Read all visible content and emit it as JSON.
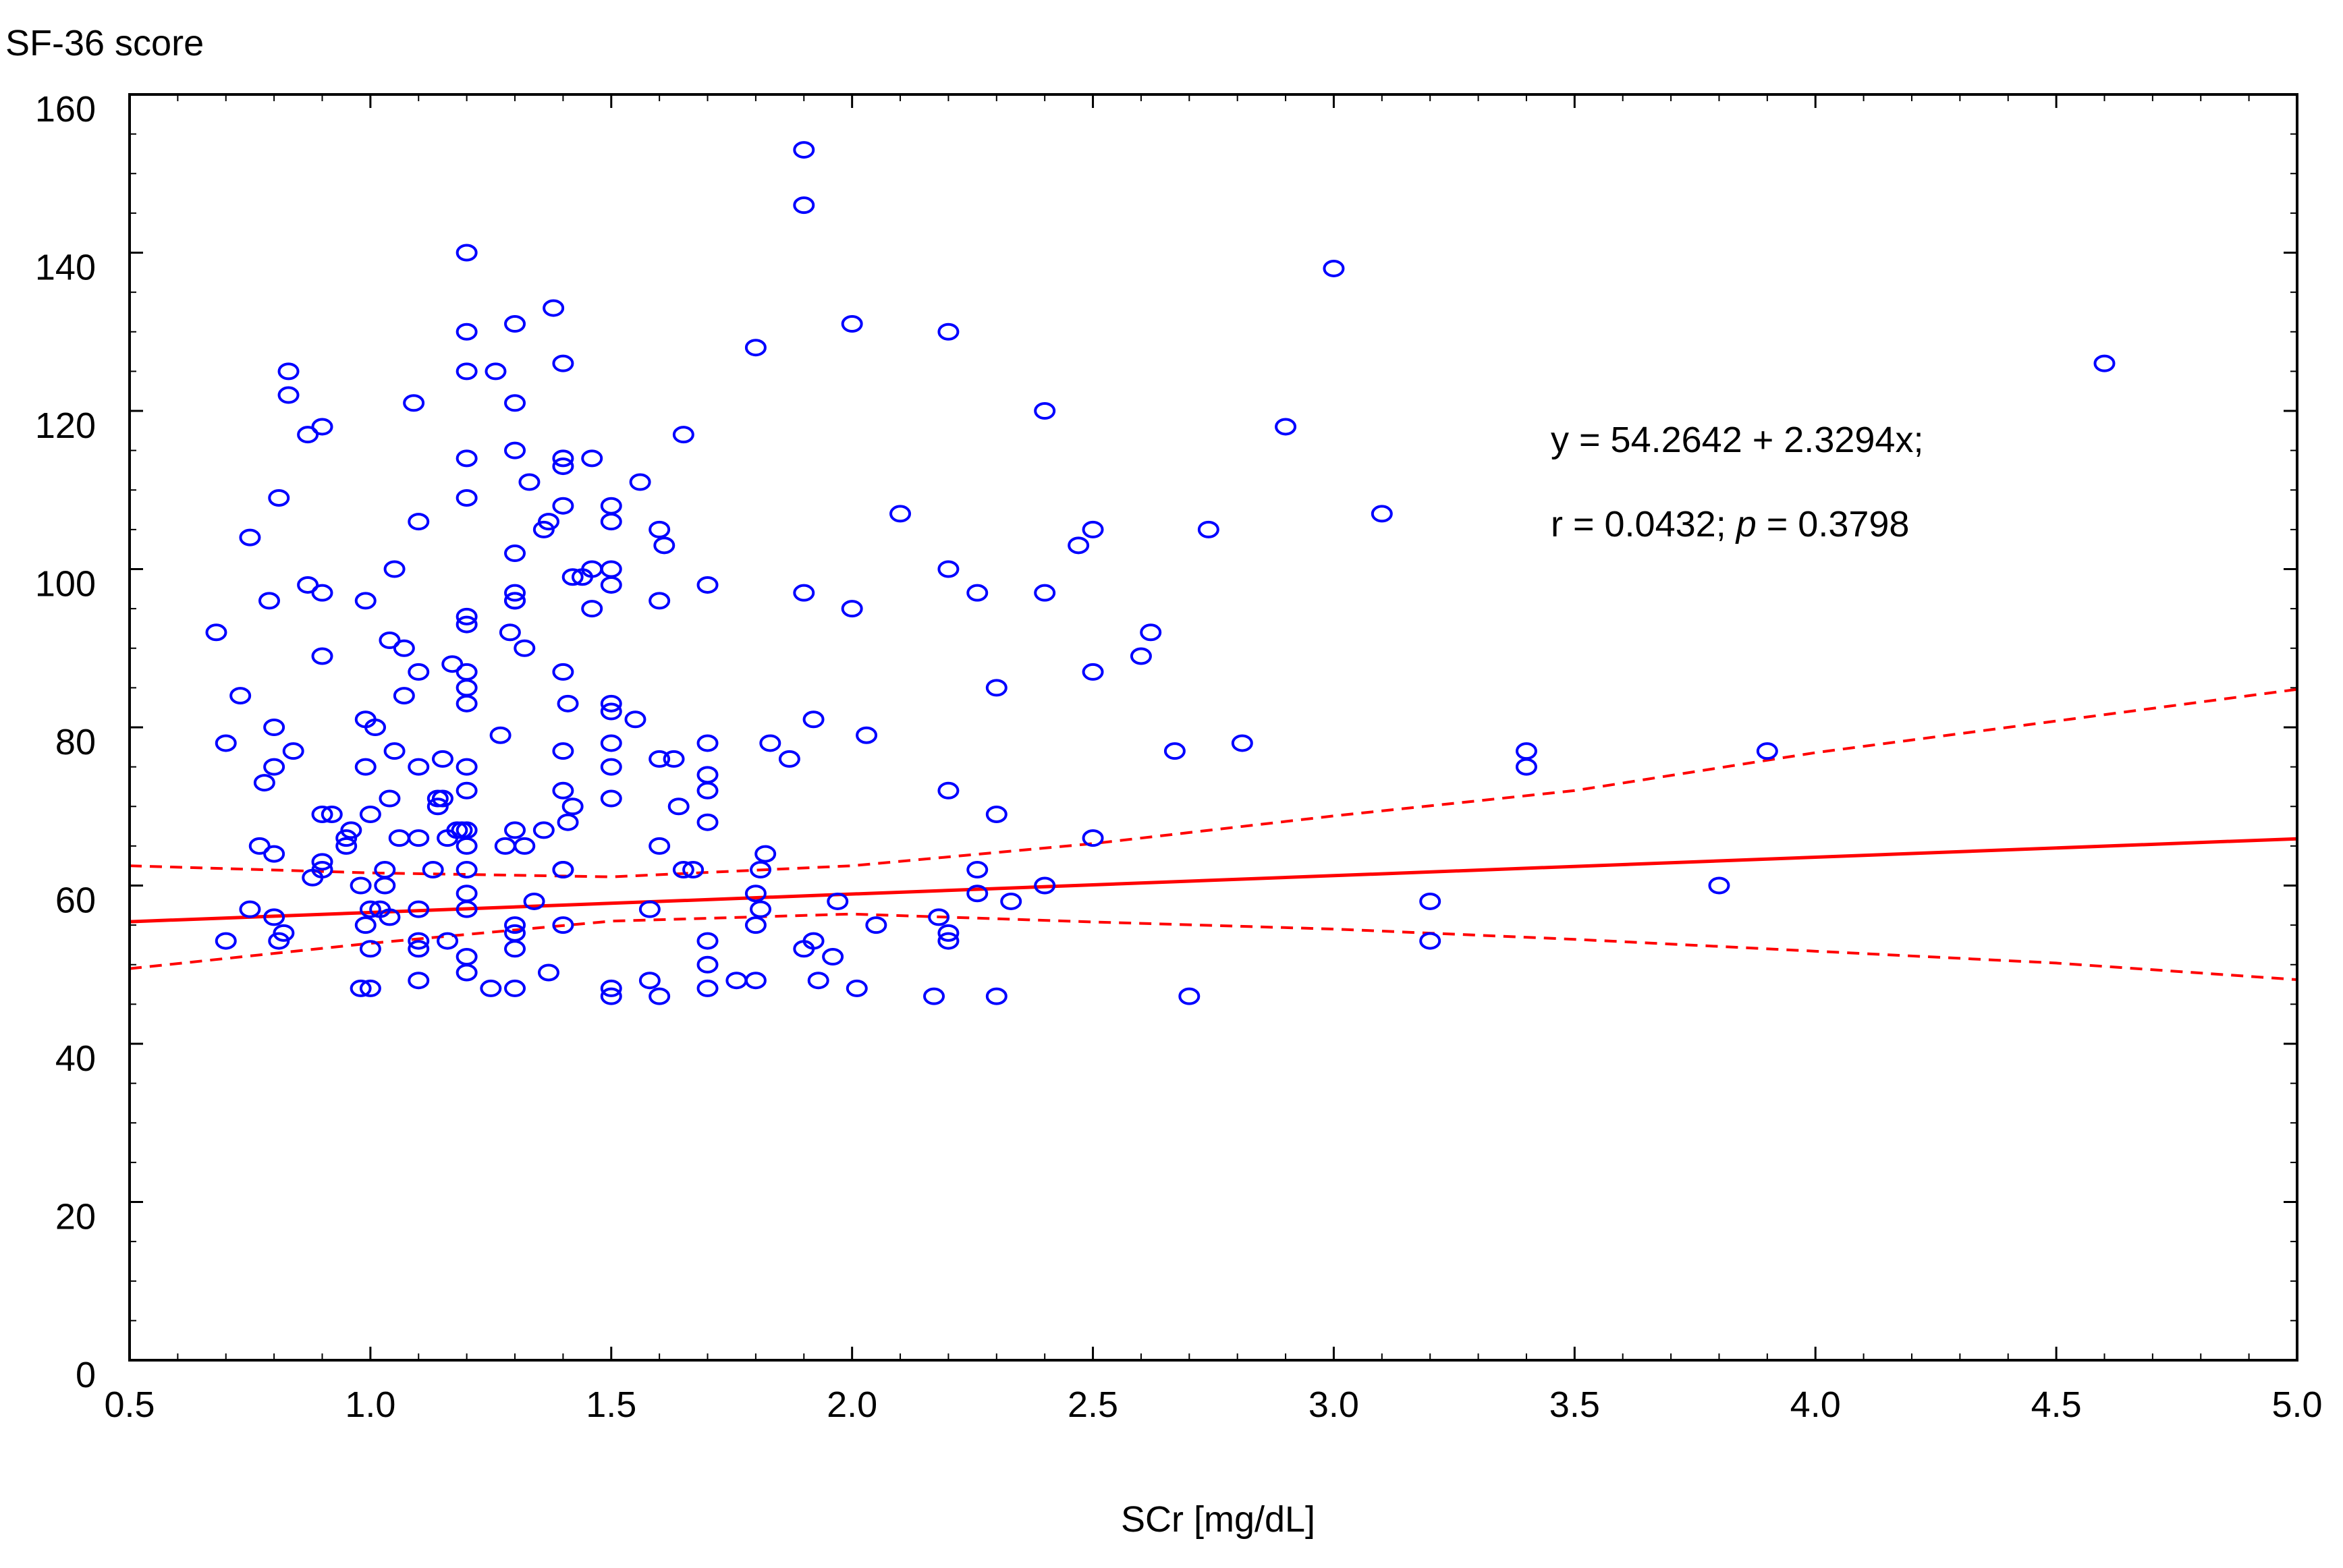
{
  "chart_data": {
    "type": "scatter",
    "title": "",
    "ylabel": "SF-36 score",
    "xlabel": "SCr [mg/dL]",
    "xlim": [
      0.5,
      5.0
    ],
    "ylim": [
      0,
      160
    ],
    "xticks": [
      0.5,
      1.0,
      1.5,
      2.0,
      2.5,
      3.0,
      3.5,
      4.0,
      4.5,
      5.0
    ],
    "xtick_labels": [
      "0.5",
      "1.0",
      "1.5",
      "2.0",
      "2.5",
      "3.0",
      "3.5",
      "4.0",
      "4.5",
      "5.0"
    ],
    "yticks": [
      0,
      20,
      40,
      60,
      80,
      100,
      120,
      140,
      160
    ],
    "ytick_labels": [
      "0",
      "20",
      "40",
      "60",
      "80",
      "100",
      "120",
      "140",
      "160"
    ],
    "annotation_line1": "y = 54.2642 + 2.3294x;",
    "annotation_r": "r = 0.0432; ",
    "annotation_p_symbol": "p",
    "annotation_p_value": " = 0.3798",
    "regression": {
      "intercept": 54.2642,
      "slope": 2.3294
    },
    "confidence_band": {
      "x": [
        0.5,
        1.0,
        1.5,
        2.0,
        2.5,
        3.0,
        3.5,
        4.0,
        4.5,
        5.0
      ],
      "upper": [
        62.5,
        61.6,
        61.1,
        62.5,
        65.3,
        68.8,
        72.0,
        76.8,
        80.8,
        84.8
      ],
      "lower": [
        49.5,
        52.7,
        55.5,
        56.4,
        55.4,
        54.5,
        53.2,
        51.7,
        50.2,
        48.1
      ]
    },
    "series": [
      {
        "name": "patients",
        "color": "#0000ff",
        "points": [
          [
            0.68,
            92
          ],
          [
            0.7,
            78
          ],
          [
            0.7,
            53
          ],
          [
            0.73,
            84
          ],
          [
            0.75,
            104
          ],
          [
            0.75,
            57
          ],
          [
            0.77,
            65
          ],
          [
            0.78,
            73
          ],
          [
            0.79,
            96
          ],
          [
            0.8,
            64
          ],
          [
            0.8,
            80
          ],
          [
            0.8,
            75
          ],
          [
            0.8,
            56
          ],
          [
            0.81,
            109
          ],
          [
            0.81,
            53
          ],
          [
            0.82,
            54
          ],
          [
            0.83,
            122
          ],
          [
            0.83,
            125
          ],
          [
            0.84,
            77
          ],
          [
            0.87,
            98
          ],
          [
            0.87,
            117
          ],
          [
            0.88,
            61
          ],
          [
            0.9,
            118
          ],
          [
            0.9,
            97
          ],
          [
            0.9,
            89
          ],
          [
            0.9,
            69
          ],
          [
            0.9,
            63
          ],
          [
            0.9,
            62
          ],
          [
            0.92,
            69
          ],
          [
            0.95,
            66
          ],
          [
            0.95,
            65
          ],
          [
            0.96,
            67
          ],
          [
            0.98,
            60
          ],
          [
            0.98,
            47
          ],
          [
            0.99,
            96
          ],
          [
            0.99,
            81
          ],
          [
            0.99,
            75
          ],
          [
            0.99,
            55
          ],
          [
            1.0,
            69
          ],
          [
            1.0,
            57
          ],
          [
            1.0,
            52
          ],
          [
            1.0,
            47
          ],
          [
            1.01,
            80
          ],
          [
            1.02,
            57
          ],
          [
            1.03,
            62
          ],
          [
            1.03,
            60
          ],
          [
            1.04,
            91
          ],
          [
            1.04,
            71
          ],
          [
            1.04,
            56
          ],
          [
            1.05,
            100
          ],
          [
            1.05,
            77
          ],
          [
            1.06,
            66
          ],
          [
            1.07,
            84
          ],
          [
            1.07,
            90
          ],
          [
            1.09,
            121
          ],
          [
            1.1,
            106
          ],
          [
            1.1,
            87
          ],
          [
            1.1,
            66
          ],
          [
            1.1,
            57
          ],
          [
            1.1,
            53
          ],
          [
            1.1,
            52
          ],
          [
            1.1,
            48
          ],
          [
            1.1,
            75
          ],
          [
            1.13,
            62
          ],
          [
            1.14,
            70
          ],
          [
            1.14,
            71
          ],
          [
            1.15,
            76
          ],
          [
            1.15,
            71
          ],
          [
            1.16,
            66
          ],
          [
            1.16,
            53
          ],
          [
            1.17,
            88
          ],
          [
            1.18,
            67
          ],
          [
            1.19,
            67
          ],
          [
            1.2,
            140
          ],
          [
            1.2,
            130
          ],
          [
            1.2,
            125
          ],
          [
            1.2,
            114
          ],
          [
            1.2,
            109
          ],
          [
            1.2,
            94
          ],
          [
            1.2,
            93
          ],
          [
            1.2,
            87
          ],
          [
            1.2,
            85
          ],
          [
            1.2,
            83
          ],
          [
            1.2,
            75
          ],
          [
            1.2,
            72
          ],
          [
            1.2,
            67
          ],
          [
            1.2,
            65
          ],
          [
            1.2,
            62
          ],
          [
            1.2,
            59
          ],
          [
            1.2,
            57
          ],
          [
            1.2,
            51
          ],
          [
            1.2,
            49
          ],
          [
            1.25,
            47
          ],
          [
            1.26,
            125
          ],
          [
            1.27,
            79
          ],
          [
            1.28,
            65
          ],
          [
            1.29,
            92
          ],
          [
            1.3,
            131
          ],
          [
            1.3,
            121
          ],
          [
            1.3,
            115
          ],
          [
            1.3,
            102
          ],
          [
            1.3,
            97
          ],
          [
            1.3,
            96
          ],
          [
            1.3,
            96
          ],
          [
            1.3,
            67
          ],
          [
            1.3,
            55
          ],
          [
            1.3,
            54
          ],
          [
            1.3,
            52
          ],
          [
            1.3,
            47
          ],
          [
            1.32,
            90
          ],
          [
            1.32,
            65
          ],
          [
            1.33,
            111
          ],
          [
            1.34,
            58
          ],
          [
            1.36,
            67
          ],
          [
            1.36,
            105
          ],
          [
            1.37,
            106
          ],
          [
            1.37,
            49
          ],
          [
            1.38,
            133
          ],
          [
            1.4,
            126
          ],
          [
            1.4,
            114
          ],
          [
            1.4,
            113
          ],
          [
            1.4,
            108
          ],
          [
            1.4,
            87
          ],
          [
            1.4,
            77
          ],
          [
            1.4,
            72
          ],
          [
            1.4,
            62
          ],
          [
            1.4,
            62
          ],
          [
            1.4,
            55
          ],
          [
            1.41,
            83
          ],
          [
            1.41,
            68
          ],
          [
            1.42,
            99
          ],
          [
            1.42,
            70
          ],
          [
            1.44,
            99
          ],
          [
            1.46,
            114
          ],
          [
            1.46,
            100
          ],
          [
            1.46,
            95
          ],
          [
            1.5,
            108
          ],
          [
            1.5,
            106
          ],
          [
            1.5,
            100
          ],
          [
            1.5,
            98
          ],
          [
            1.5,
            83
          ],
          [
            1.5,
            82
          ],
          [
            1.5,
            78
          ],
          [
            1.5,
            75
          ],
          [
            1.5,
            71
          ],
          [
            1.5,
            47
          ],
          [
            1.5,
            46
          ],
          [
            1.56,
            111
          ],
          [
            1.55,
            81
          ],
          [
            1.58,
            57
          ],
          [
            1.58,
            48
          ],
          [
            1.6,
            105
          ],
          [
            1.6,
            96
          ],
          [
            1.6,
            76
          ],
          [
            1.6,
            65
          ],
          [
            1.6,
            46
          ],
          [
            1.61,
            103
          ],
          [
            1.63,
            76
          ],
          [
            1.64,
            70
          ],
          [
            1.65,
            117
          ],
          [
            1.65,
            62
          ],
          [
            1.67,
            62
          ],
          [
            1.7,
            98
          ],
          [
            1.7,
            78
          ],
          [
            1.7,
            74
          ],
          [
            1.7,
            72
          ],
          [
            1.7,
            68
          ],
          [
            1.7,
            53
          ],
          [
            1.7,
            50
          ],
          [
            1.7,
            47
          ],
          [
            1.76,
            48
          ],
          [
            1.8,
            128
          ],
          [
            1.8,
            59
          ],
          [
            1.8,
            55
          ],
          [
            1.8,
            48
          ],
          [
            1.81,
            62
          ],
          [
            1.81,
            57
          ],
          [
            1.82,
            64
          ],
          [
            1.83,
            78
          ],
          [
            1.87,
            76
          ],
          [
            1.9,
            153
          ],
          [
            1.9,
            146
          ],
          [
            1.9,
            97
          ],
          [
            1.9,
            52
          ],
          [
            1.92,
            81
          ],
          [
            1.92,
            53
          ],
          [
            1.93,
            48
          ],
          [
            1.96,
            51
          ],
          [
            1.97,
            58
          ],
          [
            2.0,
            131
          ],
          [
            2.0,
            95
          ],
          [
            2.01,
            47
          ],
          [
            2.03,
            79
          ],
          [
            2.05,
            55
          ],
          [
            2.1,
            107
          ],
          [
            2.17,
            46
          ],
          [
            2.18,
            56
          ],
          [
            2.2,
            130
          ],
          [
            2.2,
            100
          ],
          [
            2.2,
            72
          ],
          [
            2.2,
            54
          ],
          [
            2.2,
            53
          ],
          [
            2.26,
            97
          ],
          [
            2.26,
            62
          ],
          [
            2.26,
            59
          ],
          [
            2.3,
            85
          ],
          [
            2.3,
            69
          ],
          [
            2.3,
            46
          ],
          [
            2.33,
            58
          ],
          [
            2.4,
            120
          ],
          [
            2.4,
            97
          ],
          [
            2.4,
            60
          ],
          [
            2.47,
            103
          ],
          [
            2.5,
            105
          ],
          [
            2.5,
            87
          ],
          [
            2.5,
            66
          ],
          [
            2.6,
            89
          ],
          [
            2.62,
            92
          ],
          [
            2.67,
            77
          ],
          [
            2.7,
            46
          ],
          [
            2.74,
            105
          ],
          [
            2.81,
            78
          ],
          [
            2.9,
            118
          ],
          [
            3.0,
            138
          ],
          [
            3.1,
            107
          ],
          [
            3.2,
            58
          ],
          [
            3.2,
            53
          ],
          [
            3.4,
            77
          ],
          [
            3.4,
            75
          ],
          [
            3.8,
            60
          ],
          [
            3.9,
            77
          ],
          [
            4.6,
            126
          ]
        ]
      }
    ]
  }
}
